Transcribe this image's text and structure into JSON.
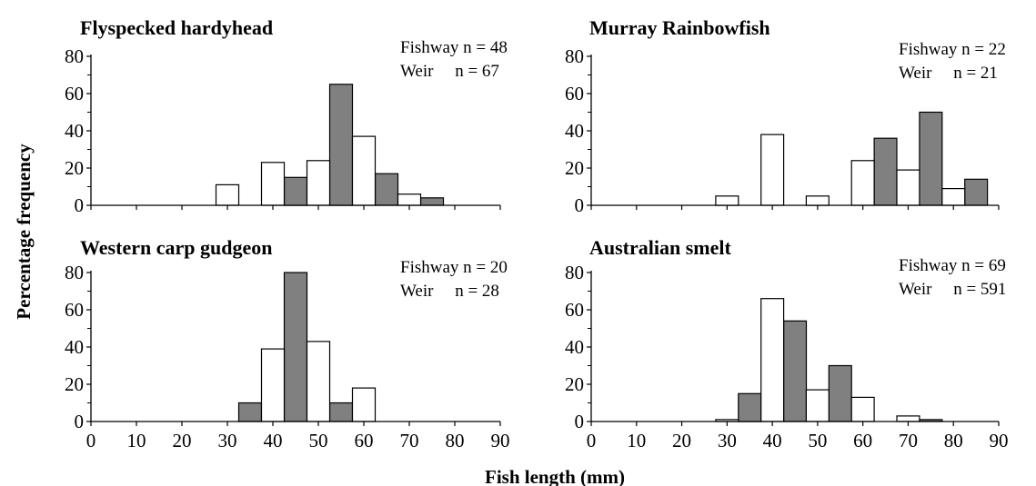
{
  "figure": {
    "ylabel": "Percentage frequency",
    "xlabel": "Fish length (mm)"
  },
  "chart_data": [
    {
      "type": "bar",
      "title": "Flyspecked hardyhead",
      "annotations": [
        "Fishway n = 48",
        "Weir     n = 67"
      ],
      "xlim": [
        0,
        90
      ],
      "ylim": [
        0,
        80
      ],
      "xticks": [],
      "yticks": [
        "0",
        "20",
        "40",
        "60",
        "80"
      ],
      "bar_width": 5,
      "series": [
        {
          "style": "grey",
          "color": "#808080",
          "x": [
            45,
            55,
            65,
            75
          ],
          "values": [
            15,
            65,
            17,
            4
          ]
        },
        {
          "style": "white",
          "color": "#ffffff",
          "x": [
            30,
            40,
            50,
            60,
            70
          ],
          "values": [
            11,
            23,
            24,
            37,
            6
          ]
        }
      ]
    },
    {
      "type": "bar",
      "title": "Murray Rainbowfish",
      "annotations": [
        "Fishway n = 22",
        "Weir     n = 21"
      ],
      "xlim": [
        0,
        90
      ],
      "ylim": [
        0,
        80
      ],
      "xticks": [],
      "yticks": [
        "0",
        "20",
        "40",
        "60",
        "80"
      ],
      "bar_width": 5,
      "series": [
        {
          "style": "grey",
          "color": "#808080",
          "x": [
            65,
            75,
            85
          ],
          "values": [
            36,
            50,
            14
          ]
        },
        {
          "style": "white",
          "color": "#ffffff",
          "x": [
            30,
            40,
            50,
            60,
            70,
            80
          ],
          "values": [
            5,
            38,
            5,
            24,
            19,
            9
          ]
        }
      ]
    },
    {
      "type": "bar",
      "title": "Western carp gudgeon",
      "annotations": [
        "Fishway n = 20",
        "Weir     n = 28"
      ],
      "xlim": [
        0,
        90
      ],
      "ylim": [
        0,
        80
      ],
      "xticks": [
        "0",
        "10",
        "20",
        "30",
        "40",
        "50",
        "60",
        "70",
        "80",
        "90"
      ],
      "yticks": [
        "0",
        "20",
        "40",
        "60",
        "80"
      ],
      "bar_width": 5,
      "series": [
        {
          "style": "grey",
          "color": "#808080",
          "x": [
            35,
            45,
            55
          ],
          "values": [
            10,
            80,
            10
          ]
        },
        {
          "style": "white",
          "color": "#ffffff",
          "x": [
            40,
            50,
            60
          ],
          "values": [
            39,
            43,
            18
          ]
        }
      ]
    },
    {
      "type": "bar",
      "title": "Australian smelt",
      "annotations": [
        "Fishway n = 69",
        "Weir     n = 591"
      ],
      "xlim": [
        0,
        90
      ],
      "ylim": [
        0,
        80
      ],
      "xticks": [
        "0",
        "10",
        "20",
        "30",
        "40",
        "50",
        "60",
        "70",
        "80",
        "90"
      ],
      "yticks": [
        "0",
        "20",
        "40",
        "60",
        "80"
      ],
      "bar_width": 5,
      "series": [
        {
          "style": "grey",
          "color": "#808080",
          "x": [
            35,
            45,
            55,
            75
          ],
          "values": [
            15,
            54,
            30,
            1
          ]
        },
        {
          "style": "white",
          "color": "#ffffff",
          "x": [
            30,
            40,
            50,
            60,
            70
          ],
          "values": [
            1,
            66,
            17,
            13,
            3
          ]
        }
      ]
    }
  ]
}
